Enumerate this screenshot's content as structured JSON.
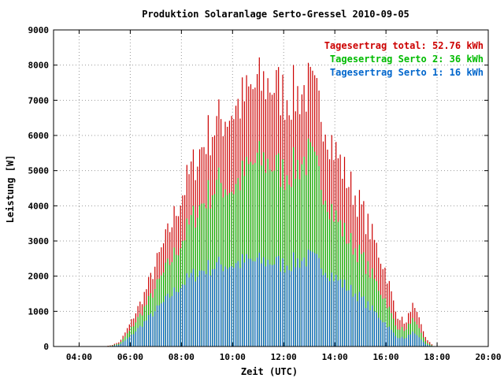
{
  "chart_data": {
    "type": "bar",
    "title": "Produktion Solaranlage Serto-Gressel 2010-09-05",
    "xlabel": "Zeit (UTC)",
    "ylabel": "Leistung [W]",
    "xlim": [
      3.0,
      20.0
    ],
    "ylim": [
      0,
      9000
    ],
    "x_ticks": [
      {
        "value": 4,
        "label": "04:00"
      },
      {
        "value": 6,
        "label": "06:00"
      },
      {
        "value": 8,
        "label": "08:00"
      },
      {
        "value": 10,
        "label": "10:00"
      },
      {
        "value": 12,
        "label": "12:00"
      },
      {
        "value": 14,
        "label": "14:00"
      },
      {
        "value": 16,
        "label": "16:00"
      },
      {
        "value": 18,
        "label": "18:00"
      },
      {
        "value": 20,
        "label": "20:00"
      }
    ],
    "y_ticks": [
      0,
      1000,
      2000,
      3000,
      4000,
      5000,
      6000,
      7000,
      8000,
      9000
    ],
    "grid": true,
    "legend_position": "top-right",
    "series": [
      {
        "name": "Tagesertrag total: 52.76 kWh",
        "color": "#cc0000",
        "profile_points": [
          [
            5.0,
            0
          ],
          [
            5.3,
            50
          ],
          [
            5.6,
            150
          ],
          [
            6.0,
            700
          ],
          [
            6.5,
            1500
          ],
          [
            7.0,
            2500
          ],
          [
            7.5,
            3500
          ],
          [
            8.0,
            4600
          ],
          [
            8.5,
            5600
          ],
          [
            9.0,
            6400
          ],
          [
            9.5,
            6900
          ],
          [
            10.0,
            7200
          ],
          [
            10.5,
            7600
          ],
          [
            11.0,
            8000
          ],
          [
            11.5,
            8050
          ],
          [
            12.0,
            7700
          ],
          [
            12.5,
            7700
          ],
          [
            13.0,
            7900
          ],
          [
            13.5,
            7200
          ],
          [
            14.0,
            6000
          ],
          [
            14.5,
            5100
          ],
          [
            15.0,
            4300
          ],
          [
            15.5,
            3300
          ],
          [
            16.0,
            2300
          ],
          [
            16.4,
            1000
          ],
          [
            16.8,
            700
          ],
          [
            17.0,
            1300
          ],
          [
            17.3,
            800
          ],
          [
            17.6,
            200
          ],
          [
            17.9,
            0
          ]
        ]
      },
      {
        "name": "Tagesertrag Serto 2: 36 kWh",
        "color": "#00bb00",
        "profile_points": [
          [
            5.0,
            0
          ],
          [
            5.3,
            30
          ],
          [
            5.6,
            100
          ],
          [
            6.0,
            500
          ],
          [
            6.5,
            1100
          ],
          [
            7.0,
            1800
          ],
          [
            7.5,
            2500
          ],
          [
            8.0,
            3200
          ],
          [
            8.5,
            4000
          ],
          [
            9.0,
            4600
          ],
          [
            9.5,
            5000
          ],
          [
            10.0,
            4800
          ],
          [
            10.5,
            5300
          ],
          [
            11.0,
            5700
          ],
          [
            11.5,
            5600
          ],
          [
            12.0,
            5300
          ],
          [
            12.5,
            5500
          ],
          [
            13.0,
            5800
          ],
          [
            13.5,
            5000
          ],
          [
            14.0,
            4000
          ],
          [
            14.5,
            3300
          ],
          [
            15.0,
            2800
          ],
          [
            15.5,
            2100
          ],
          [
            16.0,
            1400
          ],
          [
            16.4,
            600
          ],
          [
            16.8,
            500
          ],
          [
            17.0,
            850
          ],
          [
            17.3,
            500
          ],
          [
            17.6,
            100
          ],
          [
            17.9,
            0
          ]
        ]
      },
      {
        "name": "Tagesertrag Serto 1: 16 kWh",
        "color": "#0066cc",
        "profile_points": [
          [
            5.0,
            0
          ],
          [
            5.3,
            20
          ],
          [
            5.6,
            60
          ],
          [
            6.0,
            300
          ],
          [
            6.5,
            700
          ],
          [
            7.0,
            1100
          ],
          [
            7.5,
            1500
          ],
          [
            8.0,
            1900
          ],
          [
            8.5,
            2200
          ],
          [
            9.0,
            2400
          ],
          [
            9.5,
            2500
          ],
          [
            10.0,
            2500
          ],
          [
            10.5,
            2600
          ],
          [
            11.0,
            2600
          ],
          [
            11.5,
            2600
          ],
          [
            12.0,
            2500
          ],
          [
            12.5,
            2600
          ],
          [
            13.0,
            2700
          ],
          [
            13.5,
            2500
          ],
          [
            14.0,
            2100
          ],
          [
            14.5,
            1800
          ],
          [
            15.0,
            1500
          ],
          [
            15.5,
            1100
          ],
          [
            16.0,
            700
          ],
          [
            16.4,
            300
          ],
          [
            16.8,
            250
          ],
          [
            17.0,
            450
          ],
          [
            17.3,
            250
          ],
          [
            17.6,
            50
          ],
          [
            17.9,
            0
          ]
        ]
      }
    ],
    "bar_x_range": [
      5.05,
      17.9
    ],
    "bar_interval_hours": 0.0833
  }
}
